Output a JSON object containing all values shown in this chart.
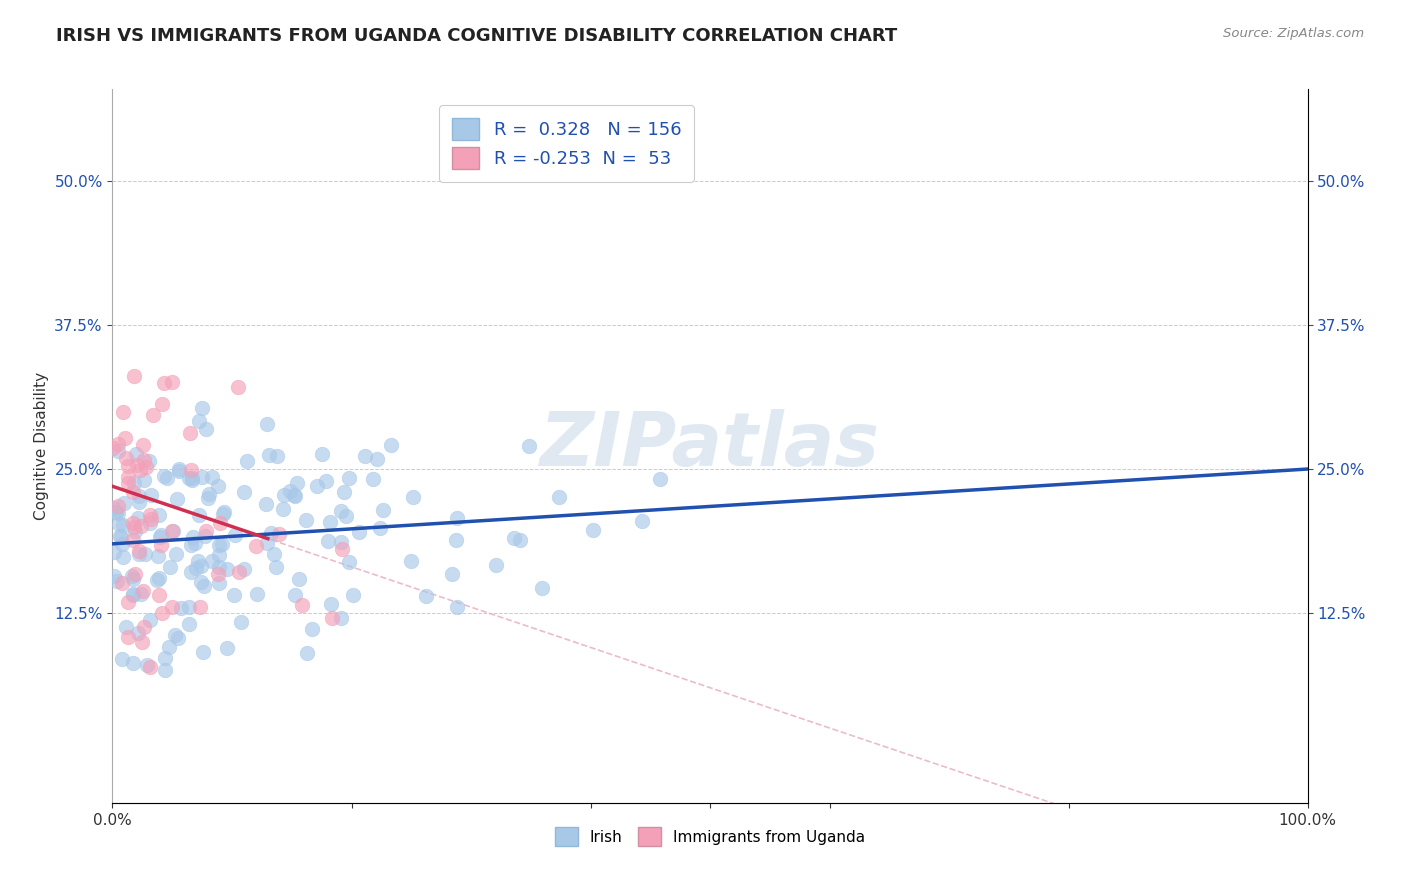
{
  "title": "IRISH VS IMMIGRANTS FROM UGANDA COGNITIVE DISABILITY CORRELATION CHART",
  "source": "Source: ZipAtlas.com",
  "ylabel": "Cognitive Disability",
  "ytick_labels": [
    "12.5%",
    "25.0%",
    "37.5%",
    "50.0%"
  ],
  "ytick_values": [
    0.125,
    0.25,
    0.375,
    0.5
  ],
  "xlim": [
    0.0,
    1.0
  ],
  "ylim": [
    -0.04,
    0.58
  ],
  "irish_R": 0.328,
  "irish_N": 156,
  "uganda_R": -0.253,
  "uganda_N": 53,
  "irish_color": "#a8c8e8",
  "uganda_color": "#f4a0b8",
  "irish_line_color": "#2050b0",
  "uganda_line_color": "#d03050",
  "uganda_dash_color": "#e8b0c0",
  "watermark": "ZIPatlas",
  "background_color": "#ffffff",
  "grid_color": "#cccccc",
  "title_fontsize": 13,
  "label_fontsize": 11,
  "tick_fontsize": 11,
  "legend_fontsize": 13
}
